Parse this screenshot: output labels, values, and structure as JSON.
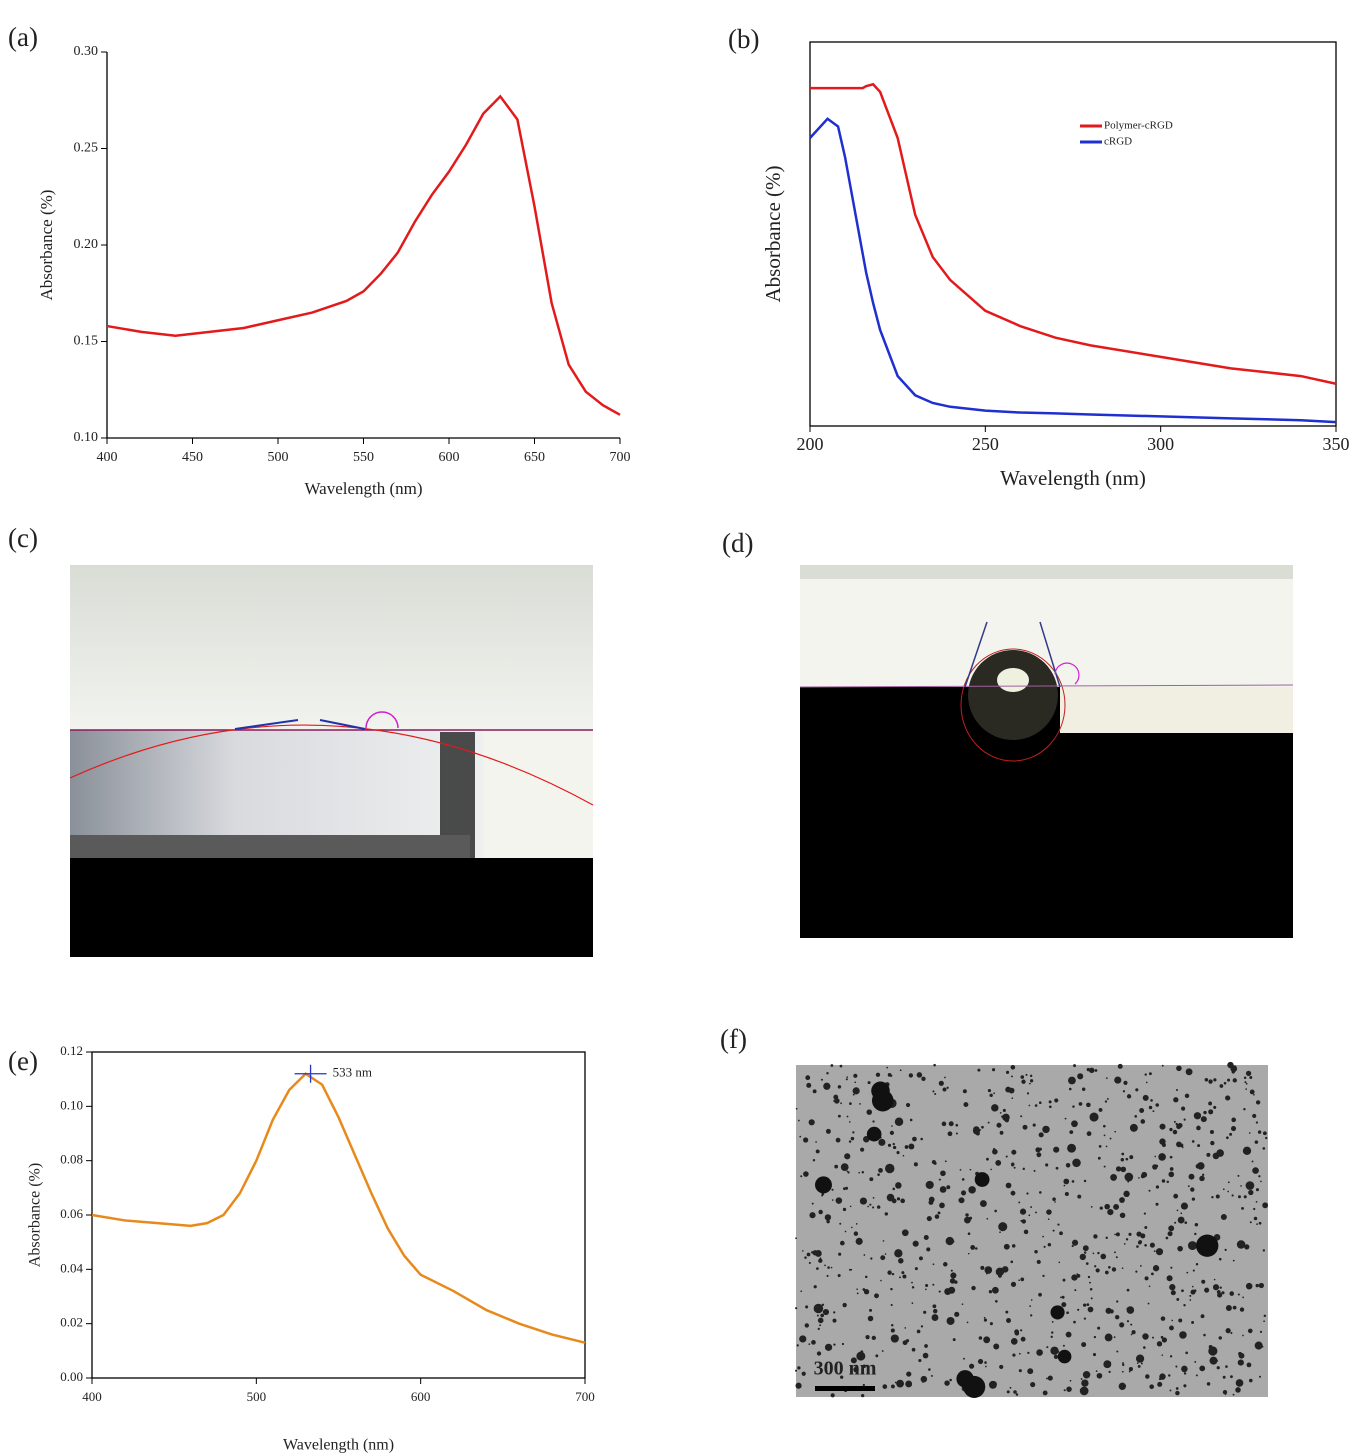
{
  "chart_data": [
    {
      "type": "line",
      "label": "(a)",
      "xlabel": "Wavelength (nm)",
      "ylabel": "Absorbance (%)",
      "xlim": [
        400,
        700
      ],
      "xticks": [
        400,
        450,
        500,
        550,
        600,
        650,
        700
      ],
      "ylim": [
        0.1,
        0.3
      ],
      "yticks": [
        {
          "value": 0.1,
          "label": "0.10"
        },
        {
          "value": 0.15,
          "label": "0.15"
        },
        {
          "value": 0.2,
          "label": "0.20"
        },
        {
          "value": 0.25,
          "label": "0.25"
        },
        {
          "value": 0.3,
          "label": "0.30"
        }
      ],
      "x": [
        400,
        420,
        440,
        460,
        480,
        500,
        520,
        540,
        550,
        560,
        570,
        580,
        590,
        600,
        610,
        620,
        630,
        640,
        650,
        660,
        670,
        680,
        690,
        700
      ],
      "series": [
        {
          "color": "#e31a1c",
          "values": [
            0.158,
            0.155,
            0.153,
            0.155,
            0.157,
            0.161,
            0.165,
            0.171,
            0.176,
            0.185,
            0.196,
            0.212,
            0.226,
            0.238,
            0.252,
            0.268,
            0.277,
            0.265,
            0.22,
            0.17,
            0.138,
            0.124,
            0.117,
            0.112
          ]
        }
      ]
    },
    {
      "type": "line",
      "label": "(b)",
      "xlabel": "Wavelength (nm)",
      "ylabel": "Absorbance (%)",
      "xlim": [
        200,
        350
      ],
      "xticks": [
        200,
        250,
        300,
        350
      ],
      "ylim": [
        0,
        1
      ],
      "legend": "upper right",
      "x": [
        200,
        205,
        208,
        210,
        213,
        215,
        216,
        218,
        220,
        225,
        230,
        235,
        240,
        250,
        260,
        270,
        280,
        300,
        320,
        340,
        350
      ],
      "series": [
        {
          "name": "Polymer-cRGD",
          "color": "#e31a1c",
          "values": [
            0.88,
            0.88,
            0.88,
            0.88,
            0.88,
            0.88,
            0.885,
            0.89,
            0.87,
            0.75,
            0.55,
            0.44,
            0.38,
            0.3,
            0.26,
            0.23,
            0.21,
            0.18,
            0.15,
            0.13,
            0.11
          ]
        },
        {
          "name": "cRGD",
          "color": "#1f2fd0",
          "values": [
            0.75,
            0.8,
            0.78,
            0.7,
            0.55,
            0.45,
            0.4,
            0.32,
            0.25,
            0.13,
            0.08,
            0.06,
            0.05,
            0.04,
            0.035,
            0.033,
            0.03,
            0.025,
            0.02,
            0.015,
            0.01
          ]
        }
      ]
    },
    {
      "type": "line",
      "label": "(e)",
      "xlabel": "Wavelength (nm)",
      "ylabel": "Absorbance (%)",
      "xlim": [
        400,
        700
      ],
      "xticks": [
        400,
        500,
        600,
        700
      ],
      "ylim": [
        0,
        0.12
      ],
      "yticks": [
        {
          "value": 0,
          "label": "0.00"
        },
        {
          "value": 0.02,
          "label": "0.02"
        },
        {
          "value": 0.04,
          "label": "0.04"
        },
        {
          "value": 0.06,
          "label": "0.06"
        },
        {
          "value": 0.08,
          "label": "0.08"
        },
        {
          "value": 0.1,
          "label": "0.10"
        },
        {
          "value": 0.12,
          "label": "0.12"
        }
      ],
      "annotation": {
        "text": "533 nm",
        "x": 533,
        "y": 0.112
      },
      "x": [
        400,
        420,
        440,
        460,
        470,
        480,
        490,
        500,
        510,
        520,
        530,
        540,
        550,
        560,
        570,
        580,
        590,
        600,
        620,
        640,
        660,
        680,
        700
      ],
      "series": [
        {
          "color": "#e8891c",
          "values": [
            0.06,
            0.058,
            0.057,
            0.056,
            0.057,
            0.06,
            0.068,
            0.08,
            0.095,
            0.106,
            0.112,
            0.108,
            0.096,
            0.082,
            0.068,
            0.055,
            0.045,
            0.038,
            0.032,
            0.025,
            0.02,
            0.016,
            0.013
          ]
        }
      ]
    }
  ],
  "images": [
    {
      "label": "(c)"
    },
    {
      "label": "(d)"
    },
    {
      "label": "(f)",
      "scale_bar": "300 nm"
    }
  ]
}
